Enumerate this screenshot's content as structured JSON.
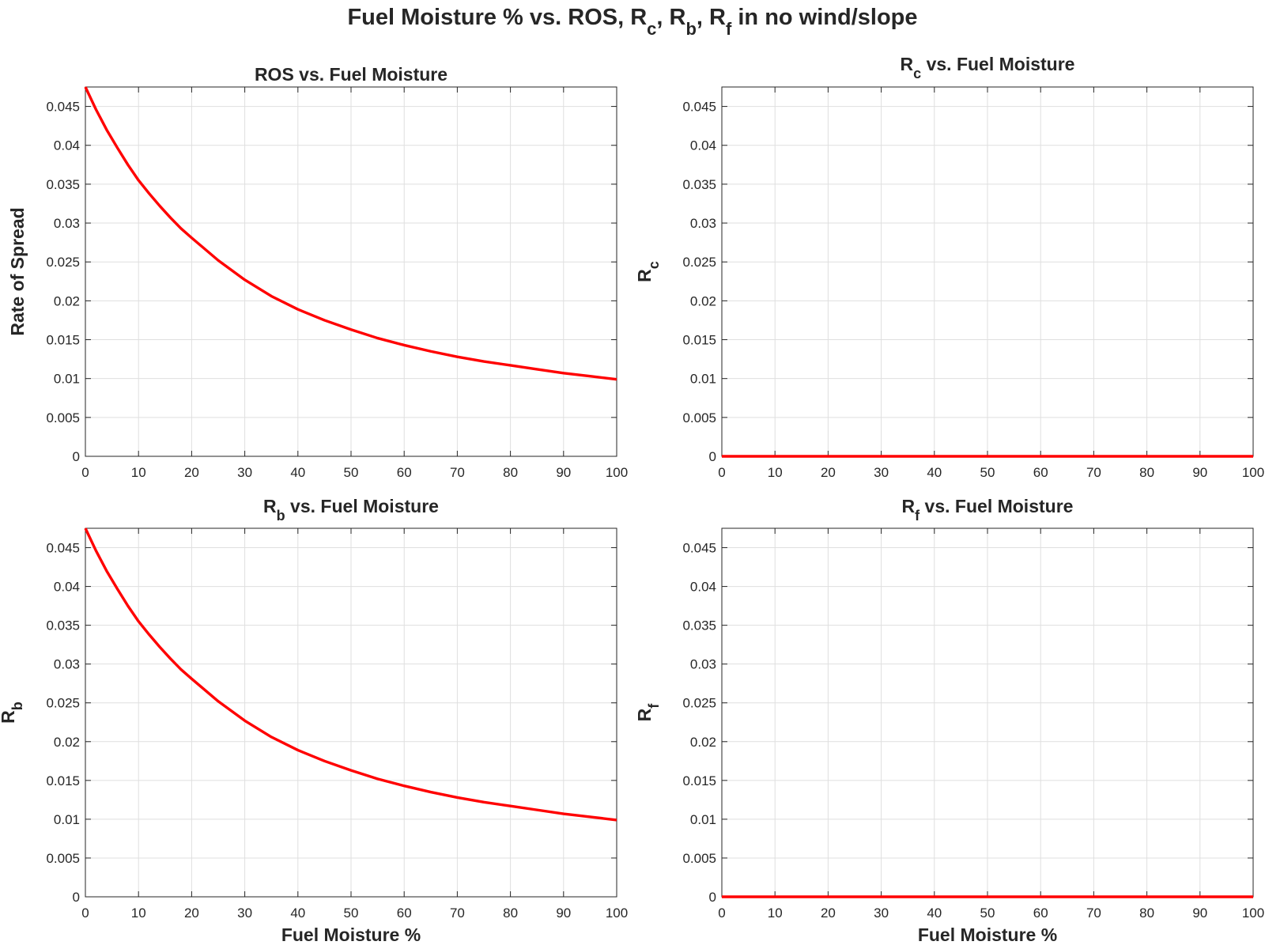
{
  "figure": {
    "suptitle": {
      "main": "Fuel Moisture % vs. ROS, R",
      "r1": "c",
      "sep1": ", R",
      "r2": "b",
      "sep2": ", R",
      "r3": "f",
      "tail": " in no wind/slope"
    }
  },
  "chart_data": [
    {
      "type": "line",
      "title": {
        "base": "ROS",
        "sub": "",
        "rest": " vs. Fuel Moisture"
      },
      "xlabel": "",
      "ylabel": {
        "base": "Rate of Spread",
        "sub": ""
      },
      "xlim": [
        0,
        100
      ],
      "ylim": [
        0,
        0.0475
      ],
      "xticks": [
        0,
        10,
        20,
        30,
        40,
        50,
        60,
        70,
        80,
        90,
        100
      ],
      "yticks": [
        0,
        0.005,
        0.01,
        0.015,
        0.02,
        0.025,
        0.03,
        0.035,
        0.04,
        0.045
      ],
      "grid": true,
      "line_color": "#ff0000",
      "series": [
        {
          "x": [
            0,
            2,
            4,
            6,
            8,
            10,
            12,
            14,
            16,
            18,
            20,
            25,
            30,
            35,
            40,
            45,
            50,
            55,
            60,
            65,
            70,
            75,
            80,
            85,
            90,
            95,
            100
          ],
          "y": [
            0.0475,
            0.0446,
            0.042,
            0.0397,
            0.0375,
            0.0355,
            0.0338,
            0.0322,
            0.0307,
            0.0293,
            0.0281,
            0.0252,
            0.0227,
            0.0206,
            0.0189,
            0.0175,
            0.0163,
            0.0152,
            0.0143,
            0.0135,
            0.0128,
            0.0122,
            0.0117,
            0.0112,
            0.0107,
            0.0103,
            0.0099
          ]
        }
      ]
    },
    {
      "type": "line",
      "title": {
        "base": "R",
        "sub": "c",
        "rest": " vs. Fuel Moisture"
      },
      "xlabel": "",
      "ylabel": {
        "base": "R",
        "sub": "c"
      },
      "xlim": [
        0,
        100
      ],
      "ylim": [
        0,
        0.0475
      ],
      "xticks": [
        0,
        10,
        20,
        30,
        40,
        50,
        60,
        70,
        80,
        90,
        100
      ],
      "yticks": [
        0,
        0.005,
        0.01,
        0.015,
        0.02,
        0.025,
        0.03,
        0.035,
        0.04,
        0.045
      ],
      "grid": true,
      "line_color": "#ff0000",
      "series": [
        {
          "x": [
            0,
            100
          ],
          "y": [
            0,
            0
          ]
        }
      ]
    },
    {
      "type": "line",
      "title": {
        "base": "R",
        "sub": "b",
        "rest": " vs. Fuel Moisture"
      },
      "xlabel": "Fuel Moisture %",
      "ylabel": {
        "base": "R",
        "sub": "b"
      },
      "xlim": [
        0,
        100
      ],
      "ylim": [
        0,
        0.0475
      ],
      "xticks": [
        0,
        10,
        20,
        30,
        40,
        50,
        60,
        70,
        80,
        90,
        100
      ],
      "yticks": [
        0,
        0.005,
        0.01,
        0.015,
        0.02,
        0.025,
        0.03,
        0.035,
        0.04,
        0.045
      ],
      "grid": true,
      "line_color": "#ff0000",
      "series": [
        {
          "x": [
            0,
            2,
            4,
            6,
            8,
            10,
            12,
            14,
            16,
            18,
            20,
            25,
            30,
            35,
            40,
            45,
            50,
            55,
            60,
            65,
            70,
            75,
            80,
            85,
            90,
            95,
            100
          ],
          "y": [
            0.0475,
            0.0446,
            0.042,
            0.0397,
            0.0375,
            0.0355,
            0.0338,
            0.0322,
            0.0307,
            0.0293,
            0.0281,
            0.0252,
            0.0227,
            0.0206,
            0.0189,
            0.0175,
            0.0163,
            0.0152,
            0.0143,
            0.0135,
            0.0128,
            0.0122,
            0.0117,
            0.0112,
            0.0107,
            0.0103,
            0.0099
          ]
        }
      ]
    },
    {
      "type": "line",
      "title": {
        "base": "R",
        "sub": "f",
        "rest": " vs. Fuel Moisture"
      },
      "xlabel": "Fuel Moisture %",
      "ylabel": {
        "base": "R",
        "sub": "f"
      },
      "xlim": [
        0,
        100
      ],
      "ylim": [
        0,
        0.0475
      ],
      "xticks": [
        0,
        10,
        20,
        30,
        40,
        50,
        60,
        70,
        80,
        90,
        100
      ],
      "yticks": [
        0,
        0.005,
        0.01,
        0.015,
        0.02,
        0.025,
        0.03,
        0.035,
        0.04,
        0.045
      ],
      "grid": true,
      "line_color": "#ff0000",
      "series": [
        {
          "x": [
            0,
            100
          ],
          "y": [
            0,
            0
          ]
        }
      ]
    }
  ]
}
